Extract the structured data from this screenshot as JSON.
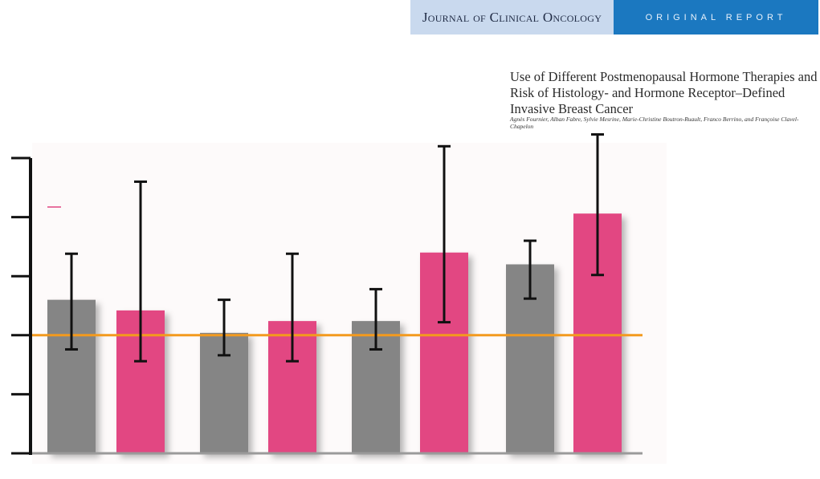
{
  "header": {
    "journal": "Journal of Clinical Oncology",
    "section": "ORIGINAL REPORT"
  },
  "paper": {
    "title": "Use of Different Postmenopausal Hormone Therapies and Risk of Histology- and Hormone Receptor–Defined Invasive Breast Cancer",
    "authors": "Agnès Fournier, Alban Fabre, Sylvie Mesrine, Marie-Christine Boutron-Ruault, Franco Berrino, and Françoise Clavel-Chapelon"
  },
  "colors": {
    "gray_bar": "#858585",
    "pink_bar": "#e24682",
    "reference_line": "#f39a1e",
    "axis": "#111111",
    "baseline": "#9a9a9a"
  },
  "chart_data": {
    "type": "bar",
    "title": "",
    "xlabel": "",
    "ylabel": "",
    "ylim": [
      0,
      2.5
    ],
    "yticks": [
      0,
      0.5,
      1.0,
      1.5,
      2.0,
      2.5
    ],
    "reference_line": 1.0,
    "grid": false,
    "bars": [
      {
        "group": 1,
        "color": "gray",
        "value": 1.3,
        "ci": [
          0.88,
          1.69
        ]
      },
      {
        "group": 1,
        "color": "pink",
        "value": 1.21,
        "ci": [
          0.78,
          2.3
        ]
      },
      {
        "group": 2,
        "color": "gray",
        "value": 1.02,
        "ci": [
          0.83,
          1.3
        ]
      },
      {
        "group": 2,
        "color": "pink",
        "value": 1.12,
        "ci": [
          0.78,
          1.69
        ]
      },
      {
        "group": 3,
        "color": "gray",
        "value": 1.12,
        "ci": [
          0.88,
          1.39
        ]
      },
      {
        "group": 3,
        "color": "pink",
        "value": 1.7,
        "ci": [
          1.11,
          2.6
        ]
      },
      {
        "group": 4,
        "color": "gray",
        "value": 1.6,
        "ci": [
          1.31,
          1.8
        ]
      },
      {
        "group": 4,
        "color": "pink",
        "value": 2.03,
        "ci": [
          1.51,
          2.7
        ]
      }
    ]
  }
}
